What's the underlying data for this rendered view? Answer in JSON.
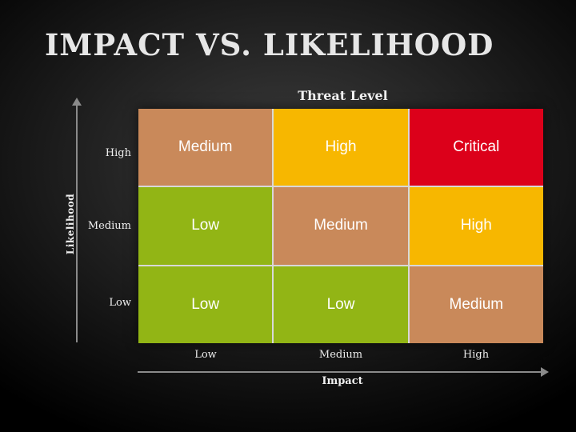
{
  "title": "IMPACT VS. LIKELIHOOD",
  "subtitle": "Threat Level",
  "y_axis": {
    "label": "Likelihood",
    "levels": [
      "High",
      "Medium",
      "Low"
    ]
  },
  "x_axis": {
    "label": "Impact",
    "levels": [
      "Low",
      "Medium",
      "High"
    ]
  },
  "matrix": {
    "rows": [
      [
        "Medium",
        "High",
        "Critical"
      ],
      [
        "Low",
        "Medium",
        "High"
      ],
      [
        "Low",
        "Low",
        "Medium"
      ]
    ]
  },
  "colors": {
    "Low": "#92b515",
    "Medium": "#c9895a",
    "High": "#f7b700",
    "Critical": "#dc001a"
  }
}
